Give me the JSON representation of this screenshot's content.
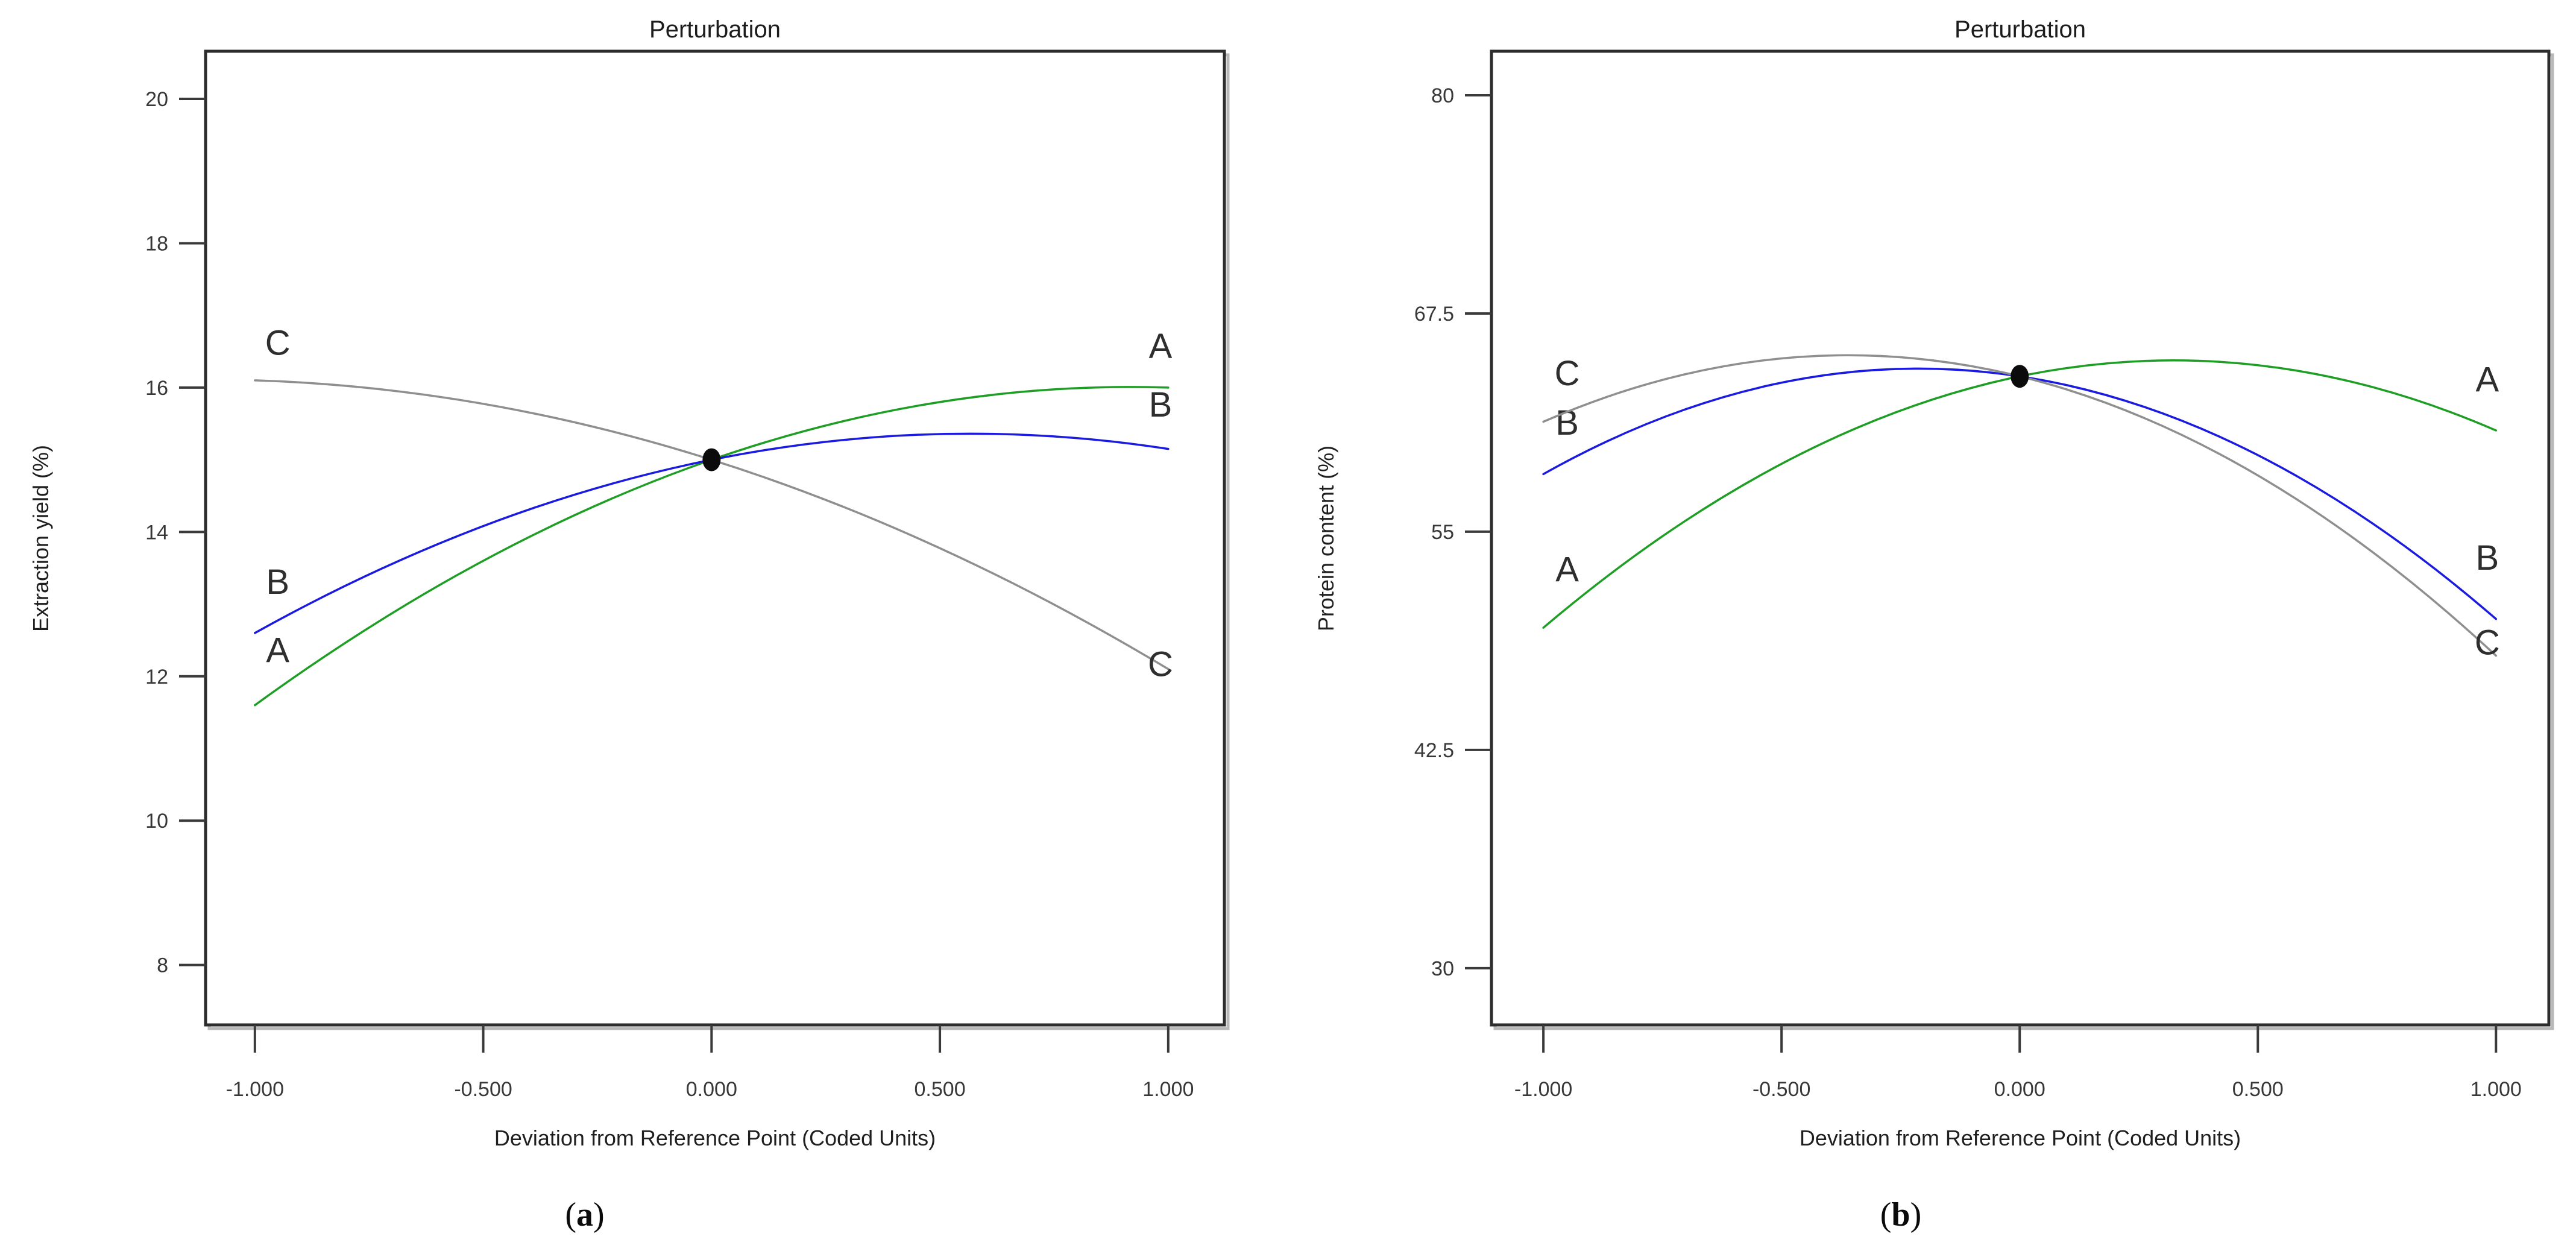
{
  "page": {
    "background": "#ffffff"
  },
  "figure": {
    "panels": [
      {
        "caption": {
          "open": "(",
          "letter": "a",
          "close": ")"
        }
      },
      {
        "caption": {
          "open": "(",
          "letter": "b",
          "close": ")"
        }
      }
    ]
  },
  "chart_data": [
    {
      "type": "line",
      "panel": "a",
      "title": "Perturbation",
      "xlabel": "Deviation from Reference Point (Coded Units)",
      "ylabel": "Extraction yield (%)",
      "xlim": [
        -1.108,
        1.123
      ],
      "ylim": [
        7.17,
        20.66
      ],
      "x_ticks": [
        -1.0,
        -0.5,
        0.0,
        0.5,
        1.0
      ],
      "x_tick_labels": [
        "-1.000",
        "-0.500",
        "0.000",
        "0.500",
        "1.000"
      ],
      "y_ticks": [
        8,
        10,
        12,
        14,
        16,
        18,
        20
      ],
      "y_tick_labels": [
        "8",
        "10",
        "12",
        "14",
        "16",
        "18",
        "20"
      ],
      "grid": false,
      "legend_position": "inline-curve-letters",
      "reference_point": {
        "x": 0.0,
        "y": 15.0
      },
      "series": [
        {
          "name": "A",
          "color": "#1f9e25",
          "x": [
            -1,
            0,
            1
          ],
          "values": [
            11.6,
            15.0,
            16.0
          ]
        },
        {
          "name": "B",
          "color": "#1b1be0",
          "x": [
            -1,
            0,
            1
          ],
          "values": [
            12.6,
            15.0,
            15.15
          ]
        },
        {
          "name": "C",
          "color": "#8f8f8f",
          "x": [
            -1,
            0,
            1
          ],
          "values": [
            16.1,
            15.0,
            12.1
          ]
        }
      ]
    },
    {
      "type": "line",
      "panel": "b",
      "title": "Perturbation",
      "xlabel": "Deviation from Reference Point (Coded Units)",
      "ylabel": "Protein content (%)",
      "xlim": [
        -1.109,
        1.111
      ],
      "ylim": [
        26.75,
        82.52
      ],
      "x_ticks": [
        -1.0,
        -0.5,
        0.0,
        0.5,
        1.0
      ],
      "x_tick_labels": [
        "-1.000",
        "-0.500",
        "0.000",
        "0.500",
        "1.000"
      ],
      "y_ticks": [
        30,
        42.5,
        55,
        67.5,
        80
      ],
      "y_tick_labels": [
        "30",
        "42.5",
        "55",
        "67.5",
        "80"
      ],
      "grid": false,
      "legend_position": "inline-curve-letters",
      "reference_point": {
        "x": 0.0,
        "y": 63.9
      },
      "series": [
        {
          "name": "A",
          "color": "#1f9e25",
          "x": [
            -1,
            0,
            1
          ],
          "values": [
            49.5,
            63.9,
            60.8
          ]
        },
        {
          "name": "B",
          "color": "#1b1be0",
          "x": [
            -1,
            0,
            1
          ],
          "values": [
            58.3,
            63.9,
            50.0
          ]
        },
        {
          "name": "C",
          "color": "#8f8f8f",
          "x": [
            -1,
            0,
            1
          ],
          "values": [
            61.3,
            63.9,
            47.9
          ]
        }
      ]
    }
  ]
}
